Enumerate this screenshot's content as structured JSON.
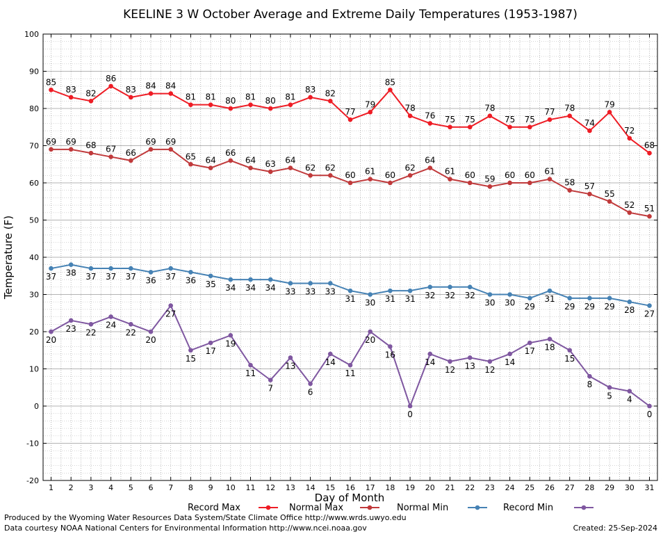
{
  "chart_data": {
    "type": "line",
    "title": "KEELINE 3 W October Average and Extreme Daily Temperatures (1953-1987)",
    "xlabel": "Day of Month",
    "ylabel": "Temperature (F)",
    "ylim": [
      -20,
      100
    ],
    "xlim": [
      0.6,
      31.4
    ],
    "grid": true,
    "legend_position": "bottom",
    "x": [
      1,
      2,
      3,
      4,
      5,
      6,
      7,
      8,
      9,
      10,
      11,
      12,
      13,
      14,
      15,
      16,
      17,
      18,
      19,
      20,
      21,
      22,
      23,
      24,
      25,
      26,
      27,
      28,
      29,
      30,
      31
    ],
    "yticks": [
      -20,
      -10,
      0,
      10,
      20,
      30,
      40,
      50,
      60,
      70,
      80,
      90,
      100
    ],
    "series": [
      {
        "name": "Record Max",
        "color": "#ee1c24",
        "label_position": "above",
        "values": [
          85,
          83,
          82,
          86,
          83,
          84,
          84,
          81,
          81,
          80,
          81,
          80,
          81,
          83,
          82,
          77,
          79,
          85,
          78,
          76,
          75,
          75,
          78,
          75,
          75,
          77,
          78,
          74,
          79,
          72,
          68
        ]
      },
      {
        "name": "Normal Max",
        "color": "#c0393b",
        "label_position": "above",
        "values": [
          69,
          69,
          68,
          67,
          66,
          69,
          69,
          65,
          64,
          66,
          64,
          63,
          64,
          62,
          62,
          60,
          61,
          60,
          62,
          64,
          61,
          60,
          59,
          60,
          60,
          61,
          58,
          57,
          55,
          52,
          51
        ]
      },
      {
        "name": "Normal Min",
        "color": "#4682b4",
        "label_position": "below",
        "values": [
          37,
          38,
          37,
          37,
          37,
          36,
          37,
          36,
          35,
          34,
          34,
          34,
          33,
          33,
          33,
          31,
          30,
          31,
          31,
          32,
          32,
          32,
          30,
          30,
          29,
          31,
          29,
          29,
          29,
          28,
          27
        ]
      },
      {
        "name": "Record Min",
        "color": "#7e57a0",
        "label_position": "below",
        "values": [
          20,
          23,
          22,
          24,
          22,
          20,
          27,
          15,
          17,
          19,
          11,
          7,
          13,
          6,
          14,
          11,
          20,
          16,
          0,
          14,
          12,
          13,
          12,
          14,
          17,
          18,
          15,
          8,
          5,
          4,
          0
        ]
      }
    ]
  },
  "footer": {
    "left_line1": "Produced by the Wyoming Water Resources Data System/State Climate Office http://www.wrds.uwyo.edu",
    "left_line2": "Data courtesy NOAA National Centers for Environmental Information http://www.ncei.noaa.gov",
    "created": "Created:  25-Sep-2024"
  }
}
